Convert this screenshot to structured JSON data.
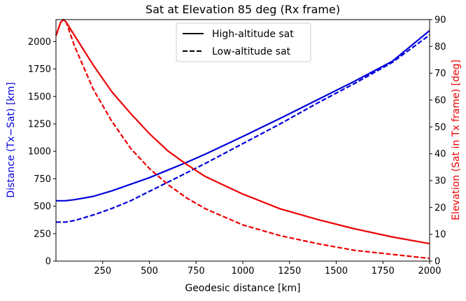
{
  "chart_data": {
    "type": "line",
    "title": "Sat at Elevation 85 deg (Rx frame)",
    "xlabel": "Geodesic distance [km]",
    "ylabel_left": "Distance (Tx−Sat) [km]",
    "ylabel_right": "Elevation (Sat in Tx frame) [deg]",
    "xlim": [
      0,
      2000
    ],
    "ylim_left": [
      0,
      2200
    ],
    "ylim_right": [
      0,
      90
    ],
    "xticks": [
      "250",
      "500",
      "750",
      "1000",
      "1250",
      "1500",
      "1750",
      "2000"
    ],
    "yticks_left": [
      "0",
      "250",
      "500",
      "750",
      "1000",
      "1250",
      "1500",
      "1750",
      "2000"
    ],
    "yticks_right": [
      "0",
      "10",
      "20",
      "30",
      "40",
      "50",
      "60",
      "70",
      "80",
      "90"
    ],
    "grid": false,
    "legend_position": "top-center",
    "legend": [
      {
        "label": "High-altitude sat",
        "style": "solid"
      },
      {
        "label": "Low-altitude sat",
        "style": "dashed"
      }
    ],
    "colors": {
      "distance": "#0000dd",
      "elevation": "#ee0000",
      "legend_line": "#000000"
    },
    "series": [
      {
        "quantity": "distance",
        "axis": "left",
        "style": "solid",
        "x": [
          0,
          50,
          100,
          200,
          300,
          400,
          500,
          600,
          700,
          800,
          1000,
          1200,
          1400,
          1600,
          1800,
          2000
        ],
        "y": [
          550,
          550,
          560,
          590,
          640,
          700,
          760,
          830,
          900,
          975,
          1135,
          1300,
          1470,
          1640,
          1820,
          2100
        ]
      },
      {
        "quantity": "distance",
        "axis": "left",
        "style": "dashed",
        "x": [
          0,
          50,
          100,
          200,
          300,
          400,
          500,
          600,
          700,
          800,
          1000,
          1200,
          1400,
          1600,
          1800,
          2000
        ],
        "y": [
          355,
          355,
          370,
          420,
          480,
          550,
          635,
          720,
          805,
          890,
          1070,
          1250,
          1440,
          1620,
          1810,
          2060
        ]
      },
      {
        "quantity": "elevation",
        "axis": "right",
        "style": "solid",
        "x": [
          0,
          25,
          40,
          55,
          100,
          200,
          300,
          400,
          500,
          600,
          700,
          800,
          1000,
          1200,
          1400,
          1600,
          1800,
          2000
        ],
        "y": [
          84,
          89,
          90,
          89,
          84,
          73,
          63,
          55,
          47.5,
          41,
          36,
          31.5,
          25,
          19.5,
          15.5,
          12,
          9,
          6.5
        ]
      },
      {
        "quantity": "elevation",
        "axis": "right",
        "style": "dashed",
        "x": [
          0,
          25,
          40,
          55,
          100,
          200,
          300,
          400,
          500,
          600,
          700,
          800,
          1000,
          1200,
          1400,
          1600,
          1800,
          2000
        ],
        "y": [
          84,
          89,
          90,
          89,
          80,
          64,
          52,
          42,
          34.5,
          28.5,
          23.5,
          19.5,
          13.5,
          9.5,
          6.5,
          4,
          2.5,
          1
        ]
      }
    ]
  }
}
